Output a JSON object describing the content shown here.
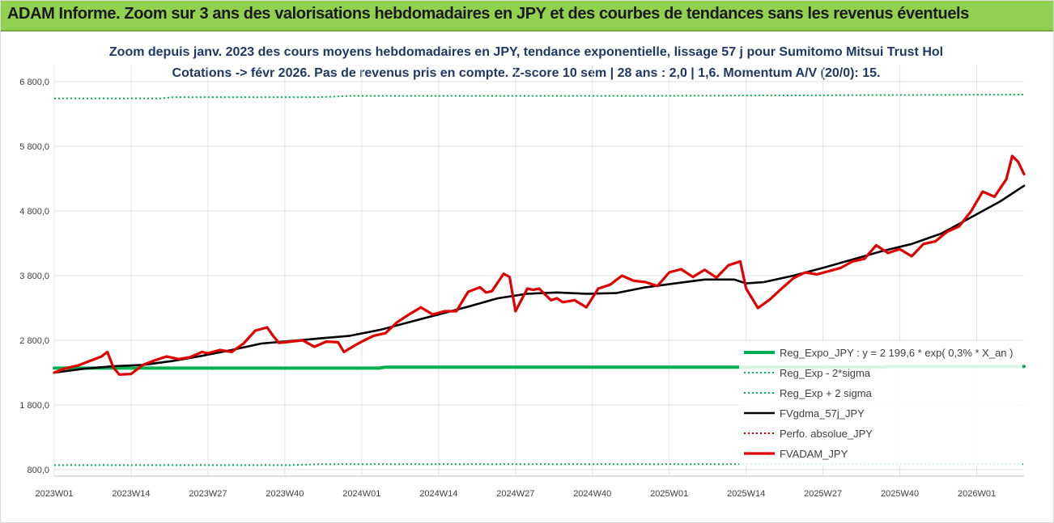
{
  "banner": {
    "title": "ADAM Informe. Zoom sur 3 ans des valorisations hebdomadaires en JPY et des courbes de tendances sans les revenus éventuels",
    "color": "#92d050"
  },
  "chart_data": {
    "type": "line",
    "title_line1": "Zoom depuis janv. 2023 des cours moyens hebdomadaires en JPY, tendance exponentielle, lissage 57 j pour Sumitomo Mitsui Trust Hol",
    "title_line2": "Cotations -> févr 2026. Pas de revenus pris en compte. Z-score 10 sem | 28 ans : 2,0 | 1,6. Momentum A/V (20/0): 15.",
    "ylim": [
      700,
      7050
    ],
    "y_ticks": [
      800,
      1800,
      2800,
      3800,
      4800,
      5800,
      6800
    ],
    "y_tick_labels": [
      "800,0",
      "1 800,0",
      "2 800,0",
      "3 800,0",
      "4 800,0",
      "5 800,0",
      "6 800,0"
    ],
    "x_ticks": [
      0,
      13,
      26,
      39,
      52,
      65,
      78,
      91,
      104,
      117,
      130,
      143,
      156,
      169
    ],
    "x_tick_labels": [
      "2023W01",
      "2023W14",
      "2023W27",
      "2023W40",
      "2024W01",
      "2024W14",
      "2024W27",
      "2024W40",
      "2025W01",
      "2025W14",
      "2025W27",
      "2025W40",
      "2026W01",
      ""
    ],
    "x_range": [
      0,
      164
    ],
    "grid": true,
    "legend_position": "right",
    "series": [
      {
        "name": "Reg_Expo_JPY : y = 2 199,6 * exp( 0,3% * X_an )",
        "color": "#00b050",
        "style": "solid-thick",
        "x": [
          0,
          20,
          40,
          55,
          56,
          100,
          140,
          141,
          164
        ],
        "values": [
          2370,
          2370,
          2370,
          2370,
          2385,
          2385,
          2385,
          2395,
          2395
        ]
      },
      {
        "name": "Reg_Exp - 2*sigma",
        "color": "#00b050",
        "style": "dotted",
        "x": [
          0,
          40,
          45,
          164
        ],
        "values": [
          870,
          870,
          885,
          885
        ]
      },
      {
        "name": "Reg_Exp + 2 sigma",
        "color": "#00b050",
        "style": "dotted",
        "x": [
          0,
          18,
          20,
          45,
          50,
          100,
          164
        ],
        "values": [
          6540,
          6540,
          6560,
          6560,
          6580,
          6580,
          6600
        ]
      },
      {
        "name": "FVgdma_57j_JPY",
        "color": "#000000",
        "style": "solid",
        "x": [
          0,
          5,
          10,
          15,
          20,
          25,
          30,
          35,
          40,
          45,
          50,
          55,
          60,
          65,
          70,
          75,
          80,
          85,
          90,
          95,
          100,
          105,
          110,
          115,
          117,
          120,
          125,
          130,
          135,
          140,
          145,
          150,
          155,
          160,
          164
        ],
        "values": [
          2300,
          2360,
          2400,
          2420,
          2480,
          2560,
          2650,
          2750,
          2790,
          2830,
          2870,
          2960,
          3080,
          3200,
          3320,
          3450,
          3520,
          3540,
          3520,
          3530,
          3620,
          3680,
          3740,
          3740,
          3680,
          3700,
          3800,
          3920,
          4050,
          4180,
          4290,
          4450,
          4700,
          4950,
          5190
        ]
      },
      {
        "name": "Perfo. absolue_JPY",
        "color": "#c00000",
        "style": "dotted",
        "x": [],
        "values": []
      },
      {
        "name": "FVADAM_JPY",
        "color": "#e00000",
        "style": "solid-thick",
        "x": [
          0,
          2,
          4,
          6,
          8,
          9,
          10,
          11,
          13,
          15,
          17,
          19,
          21,
          23,
          25,
          26,
          28,
          30,
          32,
          34,
          36,
          37,
          38,
          40,
          42,
          44,
          46,
          48,
          49,
          51,
          52,
          54,
          56,
          58,
          60,
          62,
          64,
          66,
          68,
          70,
          72,
          73,
          74,
          76,
          77,
          78,
          80,
          81,
          82,
          84,
          85,
          86,
          88,
          90,
          92,
          94,
          96,
          98,
          100,
          102,
          104,
          106,
          108,
          110,
          112,
          114,
          116,
          117,
          119,
          121,
          123,
          125,
          127,
          129,
          131,
          133,
          135,
          137,
          139,
          141,
          143,
          145,
          147,
          149,
          151,
          153,
          155,
          157,
          159,
          161,
          162,
          163,
          164
        ],
        "values": [
          2300,
          2370,
          2410,
          2480,
          2550,
          2620,
          2380,
          2270,
          2280,
          2420,
          2490,
          2550,
          2510,
          2540,
          2620,
          2600,
          2650,
          2620,
          2750,
          2950,
          3000,
          2870,
          2760,
          2780,
          2800,
          2700,
          2780,
          2770,
          2620,
          2730,
          2780,
          2870,
          2910,
          3080,
          3200,
          3310,
          3200,
          3250,
          3250,
          3550,
          3620,
          3540,
          3560,
          3830,
          3780,
          3250,
          3600,
          3580,
          3600,
          3420,
          3450,
          3390,
          3420,
          3310,
          3600,
          3660,
          3800,
          3720,
          3700,
          3640,
          3850,
          3900,
          3780,
          3890,
          3770,
          3960,
          4020,
          3600,
          3300,
          3430,
          3600,
          3760,
          3850,
          3820,
          3870,
          3920,
          4020,
          4060,
          4270,
          4150,
          4210,
          4100,
          4290,
          4330,
          4480,
          4560,
          4790,
          5100,
          5020,
          5290,
          5650,
          5560,
          5370
        ]
      }
    ]
  }
}
